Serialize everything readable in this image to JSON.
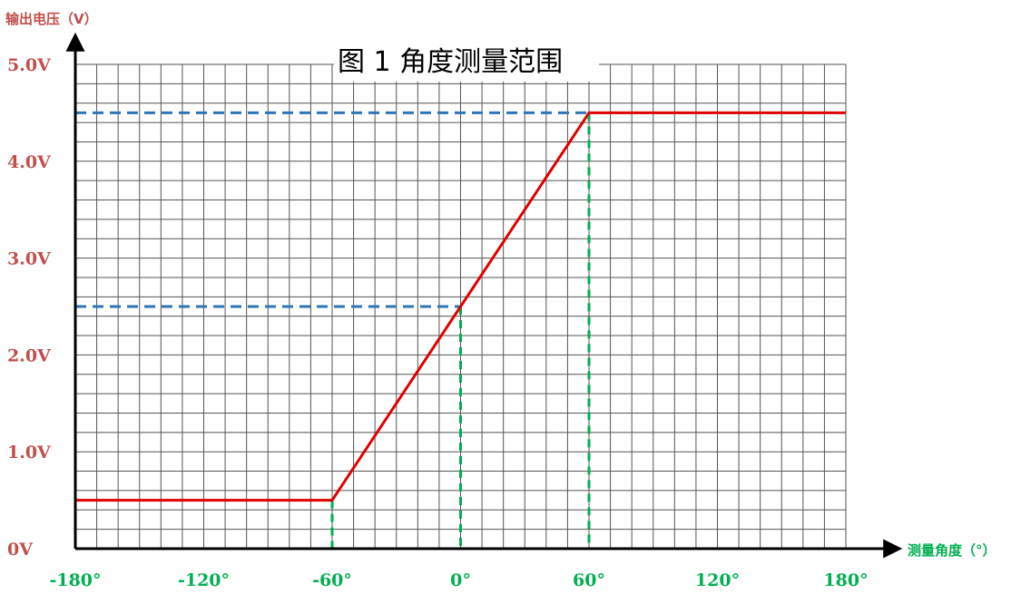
{
  "chart_data": {
    "type": "line",
    "title": "图 1  角度测量范围",
    "xlabel": "测量角度（°）",
    "ylabel": "输出电压（V）",
    "xlim": [
      -180,
      180
    ],
    "ylim": [
      0,
      5.0
    ],
    "grid": true,
    "x_ticks": [
      -180,
      -120,
      -60,
      0,
      60,
      120,
      180
    ],
    "x_tick_labels": [
      "-180°",
      "-120°",
      "-60°",
      "0°",
      "60°",
      "120°",
      "180°"
    ],
    "y_ticks": [
      0,
      1.0,
      2.0,
      3.0,
      4.0,
      5.0
    ],
    "y_tick_labels": [
      "0V",
      "1.0V",
      "2.0V",
      "3.0V",
      "4.0V",
      "5.0V"
    ],
    "series": [
      {
        "x": [
          -180,
          -60,
          60,
          180
        ],
        "y": [
          0.5,
          0.5,
          4.5,
          4.5
        ]
      }
    ],
    "reference_lines": {
      "horizontal": [
        2.5,
        4.5
      ],
      "vertical": [
        -60,
        0,
        60
      ]
    },
    "colors": {
      "series": "#e00000",
      "horizontal_ref": "#2e75b6",
      "vertical_ref": "#00b050",
      "grid": "#555555",
      "axis": "#000000",
      "ytick": "#c0504d",
      "xtick": "#00b050"
    }
  }
}
